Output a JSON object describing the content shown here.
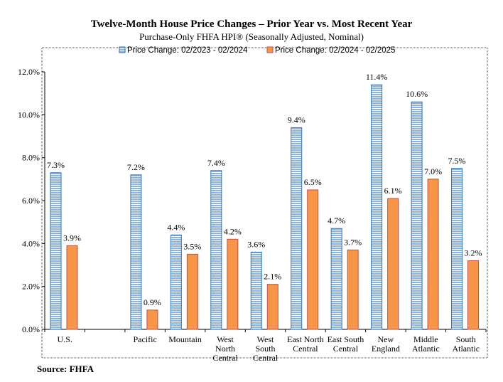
{
  "chart_data": {
    "type": "bar",
    "title": "Twelve-Month House Price Changes – Prior Year vs. Most Recent Year",
    "subtitle": "Purchase-Only FHFA HPI® (Seasonally Adjusted, Nominal)",
    "categories": [
      [
        "U.S."
      ],
      [
        ""
      ],
      [
        "Pacific"
      ],
      [
        "Mountain"
      ],
      [
        "West",
        "North",
        "Central"
      ],
      [
        "West",
        "South",
        "Central"
      ],
      [
        "East North",
        "Central"
      ],
      [
        "East South",
        "Central"
      ],
      [
        "New",
        "England"
      ],
      [
        "Middle",
        "Atlantic"
      ],
      [
        "South",
        "Atlantic"
      ]
    ],
    "series": [
      {
        "name": "Price Change:  02/2023 - 02/2024",
        "color": "#9dc3e6",
        "values": [
          7.3,
          null,
          7.2,
          4.4,
          7.4,
          3.6,
          9.4,
          4.7,
          11.4,
          10.6,
          7.5
        ],
        "labels": [
          "7.3%",
          "",
          "7.2%",
          "4.4%",
          "7.4%",
          "3.6%",
          "9.4%",
          "4.7%",
          "11.4%",
          "10.6%",
          "7.5%"
        ]
      },
      {
        "name": "Price Change:  02/2024 - 02/2025",
        "color": "#f79646",
        "values": [
          3.9,
          null,
          0.9,
          3.5,
          4.2,
          2.1,
          6.5,
          3.7,
          6.1,
          7.0,
          3.2
        ],
        "labels": [
          "3.9%",
          "",
          "0.9%",
          "3.5%",
          "4.2%",
          "2.1%",
          "6.5%",
          "3.7%",
          "6.1%",
          "7.0%",
          "3.2%"
        ]
      }
    ],
    "ylim": [
      0,
      12
    ],
    "yticks": [
      "0.0%",
      "2.0%",
      "4.0%",
      "6.0%",
      "8.0%",
      "10.0%",
      "12.0%"
    ],
    "legend_position": "top",
    "source": "Source: FHFA"
  }
}
